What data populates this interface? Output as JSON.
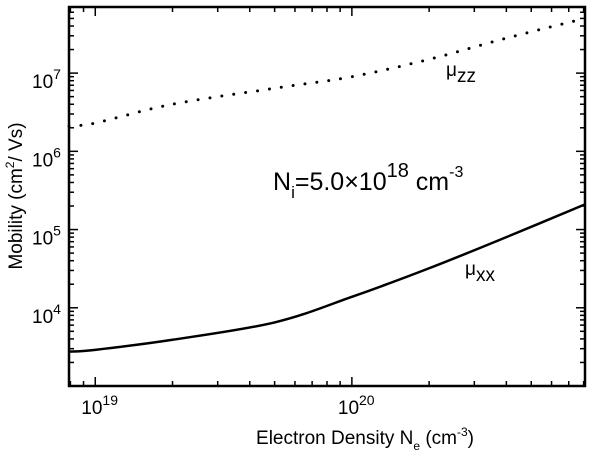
{
  "chart_data": {
    "type": "line",
    "xscale": "log",
    "yscale": "log",
    "xlabel": "Electron Density N",
    "xlabel_sub": "e",
    "xlabel_unit": " (cm",
    "xlabel_unit_sup": "-3",
    "xlabel_close": ")",
    "ylabel": "Mobility (cm",
    "ylabel_sup": "2",
    "ylabel_rest": "/ Vs)",
    "xlim": [
      7.9e+18,
      8.1e+20
    ],
    "ylim": [
      1000,
      70000000
    ],
    "xticks": [
      {
        "value": 1e+19,
        "base": "10",
        "exp": "19"
      },
      {
        "value": 1e+20,
        "base": "10",
        "exp": "20"
      }
    ],
    "yticks": [
      {
        "value": 10000.0,
        "base": "10",
        "exp": "4"
      },
      {
        "value": 100000.0,
        "base": "10",
        "exp": "5"
      },
      {
        "value": 1000000.0,
        "base": "10",
        "exp": "6"
      },
      {
        "value": 10000000.0,
        "base": "10",
        "exp": "7"
      }
    ],
    "grid": false,
    "series": [
      {
        "name": "μxx",
        "label_main": "μ",
        "label_sub": "xx",
        "style": "solid",
        "x": [
          7.9e+18,
          1e+19,
          2e+19,
          5e+19,
          1e+20,
          2e+20,
          4e+20,
          8.1e+20
        ],
        "y": [
          2750,
          2900,
          3900,
          6500,
          13800,
          32000,
          80000,
          210000
        ]
      },
      {
        "name": "μzz",
        "label_main": "μ",
        "label_sub": "zz",
        "style": "dotted",
        "x": [
          7.9e+18,
          1e+19,
          2e+19,
          5e+19,
          1e+20,
          2e+20,
          4e+20,
          8.1e+20
        ],
        "y": [
          2100000,
          2300000,
          4000000,
          6400000,
          9000000,
          15000000,
          28000000,
          50000000
        ]
      }
    ],
    "annotation": {
      "main": "N",
      "sub": "i",
      "value": "=5.0×10",
      "exp": "18",
      "unit": " cm",
      "unit_sup": "-3"
    }
  }
}
